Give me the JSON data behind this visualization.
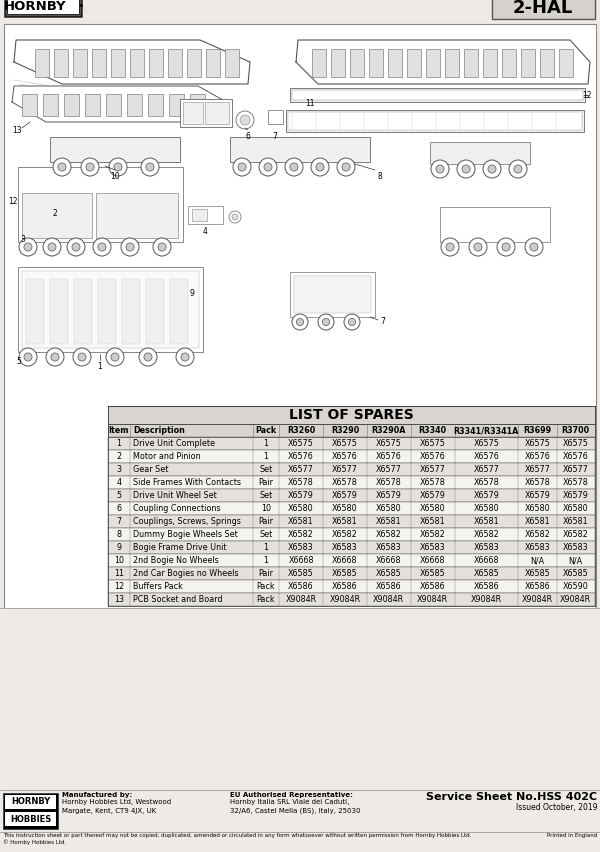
{
  "title_model": "2-HAL",
  "brand": "HORNBY",
  "table_title": "LIST OF SPARES",
  "col_headers": [
    "Item",
    "Description",
    "Pack",
    "R3260",
    "R3290",
    "R3290A",
    "R3340",
    "R3341/R3341A",
    "R3699",
    "R3700"
  ],
  "rows": [
    [
      "1",
      "Drive Unit Complete",
      "1",
      "X6575",
      "X6575",
      "X6575",
      "X6575",
      "X6575",
      "X6575",
      "X6575"
    ],
    [
      "2",
      "Motor and Pinion",
      "1",
      "X6576",
      "X6576",
      "X6576",
      "X6576",
      "X6576",
      "X6576",
      "X6576"
    ],
    [
      "3",
      "Gear Set",
      "Set",
      "X6577",
      "X6577",
      "X6577",
      "X6577",
      "X6577",
      "X6577",
      "X6577"
    ],
    [
      "4",
      "Side Frames With Contacts",
      "Pair",
      "X6578",
      "X6578",
      "X6578",
      "X6578",
      "X6578",
      "X6578",
      "X6578"
    ],
    [
      "5",
      "Drive Unit Wheel Set",
      "Set",
      "X6579",
      "X6579",
      "X6579",
      "X6579",
      "X6579",
      "X6579",
      "X6579"
    ],
    [
      "6",
      "Coupling Connections",
      "10",
      "X6580",
      "X6580",
      "X6580",
      "X6580",
      "X6580",
      "X6580",
      "X6580"
    ],
    [
      "7",
      "Couplings, Screws, Springs",
      "Pair",
      "X6581",
      "X6581",
      "X6581",
      "X6581",
      "X6581",
      "X6581",
      "X6581"
    ],
    [
      "8",
      "Dummy Bogie Wheels Set",
      "Set",
      "X6582",
      "X6582",
      "X6582",
      "X6582",
      "X6582",
      "X6582",
      "X6582"
    ],
    [
      "9",
      "Bogie Frame Drive Unit",
      "1",
      "X6583",
      "X6583",
      "X6583",
      "X6583",
      "X6583",
      "X6583",
      "X6583"
    ],
    [
      "10",
      "2nd Bogie No Wheels",
      "1",
      "X6668",
      "X6668",
      "X6668",
      "X6668",
      "X6668",
      "N/A",
      "N/A"
    ],
    [
      "11",
      "2nd Car Bogies no Wheels",
      "Pair",
      "X6585",
      "X6585",
      "X6585",
      "X6585",
      "X6585",
      "X6585",
      "X6585"
    ],
    [
      "12",
      "Buffers Pack",
      "Pack",
      "X6586",
      "X6586",
      "X6586",
      "X6586",
      "X6586",
      "X6586",
      "X6590"
    ],
    [
      "13",
      "PCB Socket and Board",
      "Pack",
      "X9084R",
      "X9084R",
      "X9084R",
      "X9084R",
      "X9084R",
      "X9084R",
      "X9084R"
    ]
  ],
  "footer_service": "Service Sheet No.HSS 402C",
  "footer_issued": "Issued October, 2019",
  "footer_mfr_title": "Manufactured by:",
  "footer_mfr_body": "Hornby Hobbies Ltd, Westwood\nMargate, Kent, CT9 4JX, UK",
  "footer_eu_title": "EU Authorised Representative:",
  "footer_eu_body": "Hornby Italia SRL Viale dei Caduti,\n32/A6, Castel Mella (BS), Italy, 25030",
  "footer_copyright": "This instruction sheet or part thereof may not be copied, duplicated, amended or circulated in any form whatsoever without written permission from Hornby Hobbies Ltd.",
  "footer_printed": "Printed in England",
  "footer_copyright2": "© Hornby Hobbies Ltd.",
  "bg_color": "#eeebe6",
  "table_header_bg": "#d8d5d0",
  "table_row_odd": "#e4e1dc",
  "table_row_even": "#f5f3ef",
  "border_color": "#444444",
  "text_color": "#111111",
  "diagram_bg": "#ffffff",
  "line_color": "#555555"
}
